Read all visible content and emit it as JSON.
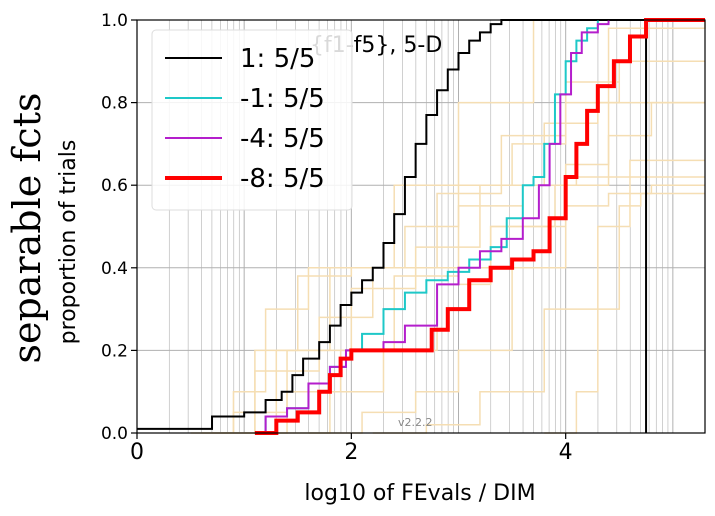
{
  "chart_data": {
    "type": "line",
    "title": "{f1-f5}, 5-D",
    "side_title": "separable fcts",
    "xlabel": "log10 of FEvals / DIM",
    "ylabel": "proportion of trials",
    "version_label": "v2.2.2",
    "xlim": [
      0,
      5.3
    ],
    "ylim": [
      0,
      1.0
    ],
    "x_ticks": [
      0,
      2,
      4
    ],
    "y_ticks": [
      0.0,
      0.2,
      0.4,
      0.6,
      0.8,
      1.0
    ],
    "x_tick_labels": [
      "0",
      "2",
      "4"
    ],
    "y_tick_labels": [
      "0.0",
      "0.2",
      "0.4",
      "0.6",
      "0.8",
      "1.0"
    ],
    "grid": true,
    "legend_position": "top-left",
    "max_evals_marker_x": 4.75,
    "colors": {
      "series_1": "#000000",
      "series_m1": "#1ec8c8",
      "series_m4": "#b41ecc",
      "series_m8": "#ff0000",
      "background_runs": "#f5deb3"
    },
    "series": [
      {
        "name": "1: 5/5",
        "color": "#000000",
        "width": 2,
        "x": [
          0,
          0.7,
          0.7,
          1.0,
          1.2,
          1.35,
          1.45,
          1.55,
          1.7,
          1.8,
          1.9,
          2.0,
          2.1,
          2.2,
          2.3,
          2.4,
          2.5,
          2.6,
          2.7,
          2.8,
          2.9,
          3.0,
          3.1,
          3.2,
          3.3,
          3.4,
          3.5,
          4.2,
          4.25,
          4.75,
          5.3
        ],
        "y": [
          0.01,
          0.01,
          0.04,
          0.05,
          0.08,
          0.1,
          0.14,
          0.18,
          0.22,
          0.26,
          0.31,
          0.34,
          0.37,
          0.4,
          0.46,
          0.53,
          0.62,
          0.7,
          0.77,
          0.83,
          0.88,
          0.92,
          0.95,
          0.97,
          0.99,
          1.0,
          1.0,
          1.0,
          1.0,
          1.0,
          1.0
        ]
      },
      {
        "name": "-1: 5/5",
        "color": "#1ec8c8",
        "width": 2,
        "x": [
          1.1,
          1.2,
          1.4,
          1.6,
          1.8,
          1.95,
          2.1,
          2.3,
          2.5,
          2.7,
          2.9,
          3.1,
          3.3,
          3.45,
          3.6,
          3.7,
          3.8,
          3.9,
          4.0,
          4.1,
          4.2,
          4.3
        ],
        "y": [
          0.0,
          0.04,
          0.06,
          0.12,
          0.16,
          0.2,
          0.24,
          0.3,
          0.34,
          0.37,
          0.39,
          0.42,
          0.45,
          0.52,
          0.6,
          0.62,
          0.7,
          0.82,
          0.9,
          0.95,
          0.98,
          1.0
        ]
      },
      {
        "name": "-4: 5/5",
        "color": "#b41ecc",
        "width": 2,
        "x": [
          1.1,
          1.2,
          1.4,
          1.6,
          1.8,
          1.95,
          2.1,
          2.3,
          2.5,
          2.8,
          3.0,
          3.2,
          3.4,
          3.6,
          3.75,
          3.85,
          3.95,
          4.05,
          4.15,
          4.3,
          4.4
        ],
        "y": [
          0.0,
          0.04,
          0.06,
          0.12,
          0.16,
          0.2,
          0.2,
          0.22,
          0.26,
          0.36,
          0.4,
          0.44,
          0.47,
          0.52,
          0.6,
          0.7,
          0.82,
          0.92,
          0.97,
          0.99,
          1.0
        ]
      },
      {
        "name": "-8: 5/5",
        "color": "#ff0000",
        "width": 4,
        "x": [
          1.1,
          1.3,
          1.5,
          1.7,
          1.8,
          1.9,
          2.0,
          2.3,
          2.6,
          2.75,
          2.9,
          3.1,
          3.3,
          3.5,
          3.7,
          3.85,
          4.0,
          4.1,
          4.2,
          4.3,
          4.45,
          4.6,
          4.75,
          5.3
        ],
        "y": [
          0.0,
          0.03,
          0.05,
          0.1,
          0.14,
          0.18,
          0.2,
          0.2,
          0.2,
          0.25,
          0.3,
          0.37,
          0.4,
          0.42,
          0.44,
          0.52,
          0.62,
          0.7,
          0.78,
          0.84,
          0.9,
          0.96,
          1.0,
          1.0
        ]
      }
    ],
    "background_runs": [
      {
        "x": [
          0.6,
          0.9,
          1.2,
          1.6,
          2.0,
          2.5,
          3.0,
          3.5,
          4.0,
          4.5,
          5.3
        ],
        "y": [
          0.0,
          0.1,
          0.3,
          0.4,
          0.4,
          0.5,
          0.6,
          0.7,
          0.8,
          0.9,
          0.9
        ]
      },
      {
        "x": [
          0.8,
          1.1,
          1.5,
          2.0,
          2.6,
          3.2,
          3.8,
          4.3,
          4.8,
          5.3
        ],
        "y": [
          0.0,
          0.2,
          0.38,
          0.4,
          0.45,
          0.6,
          0.75,
          0.8,
          0.8,
          0.8
        ]
      },
      {
        "x": [
          1.0,
          1.4,
          1.9,
          2.4,
          3.0,
          3.6,
          4.1,
          4.6,
          5.3
        ],
        "y": [
          0.0,
          0.1,
          0.2,
          0.38,
          0.55,
          0.6,
          0.62,
          0.66,
          0.66
        ]
      },
      {
        "x": [
          0.5,
          0.9,
          1.4,
          2.0,
          2.6,
          3.3,
          4.0,
          4.4,
          5.3
        ],
        "y": [
          0.0,
          0.05,
          0.2,
          0.35,
          0.4,
          0.5,
          0.65,
          0.98,
          1.0
        ]
      },
      {
        "x": [
          1.3,
          1.8,
          2.3,
          2.8,
          3.3,
          3.9,
          4.4,
          4.8,
          5.3
        ],
        "y": [
          0.0,
          0.1,
          0.2,
          0.36,
          0.5,
          0.6,
          0.72,
          0.8,
          0.8
        ]
      },
      {
        "x": [
          0.7,
          1.1,
          1.7,
          2.2,
          2.8,
          3.4,
          4.0,
          4.5,
          5.3
        ],
        "y": [
          0.0,
          0.15,
          0.28,
          0.4,
          0.58,
          0.72,
          0.85,
          0.9,
          0.9
        ]
      },
      {
        "x": [
          1.6,
          2.1,
          2.6,
          3.0,
          3.5,
          4.0,
          4.4,
          4.8,
          5.3
        ],
        "y": [
          0.0,
          0.05,
          0.1,
          0.2,
          0.4,
          0.55,
          0.58,
          0.6,
          0.6
        ]
      },
      {
        "x": [
          2.2,
          2.7,
          3.2,
          3.8,
          4.3,
          4.6,
          5.3
        ],
        "y": [
          0.0,
          0.02,
          0.1,
          0.3,
          0.5,
          0.62,
          0.62
        ]
      },
      {
        "x": [
          3.8,
          4.1,
          4.3,
          4.5,
          4.7,
          5.3
        ],
        "y": [
          0.0,
          0.1,
          0.3,
          0.55,
          0.58,
          0.58
        ]
      },
      {
        "x": [
          0.9,
          1.3,
          1.8,
          2.4,
          3.0,
          3.7,
          4.2,
          5.3
        ],
        "y": [
          0.0,
          0.2,
          0.4,
          0.6,
          0.8,
          1.0,
          1.0,
          1.0
        ]
      }
    ]
  }
}
